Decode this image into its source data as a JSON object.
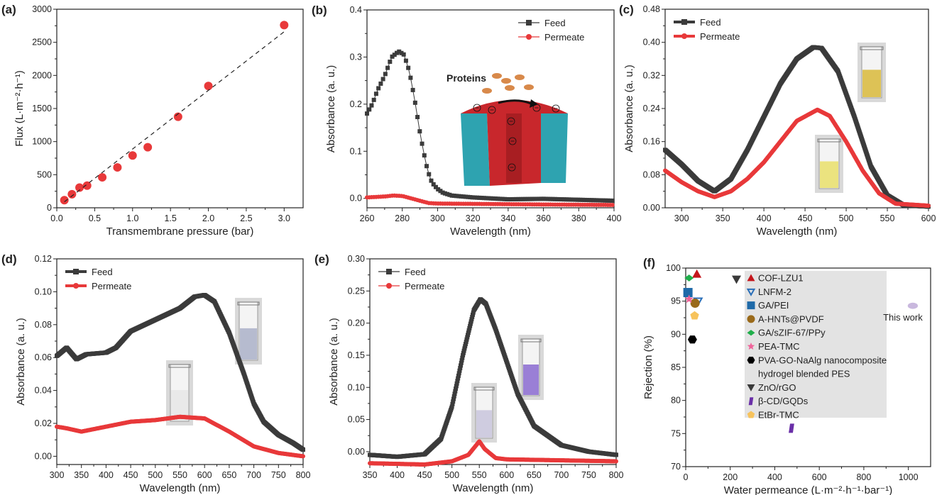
{
  "chart_data": [
    {
      "panel_label": "(a)",
      "type": "scatter",
      "xlabel": "Transmembrane pressure (bar)",
      "ylabel": "Flux (L·m⁻²·h⁻¹)",
      "xlim": [
        0,
        3.25
      ],
      "ylim": [
        0,
        3000
      ],
      "xticks": [
        "0.0",
        "0.5",
        "1.0",
        "1.5",
        "2.0",
        "2.5",
        "3.0"
      ],
      "xtick_values": [
        0,
        0.5,
        1,
        1.5,
        2,
        2.5,
        3
      ],
      "yticks": [
        "0",
        "500",
        "1000",
        "1500",
        "2000",
        "2500",
        "3000"
      ],
      "ytick_values": [
        0,
        500,
        1000,
        1500,
        2000,
        2500,
        3000
      ],
      "series": [
        {
          "name": "Flux",
          "marker": "circle",
          "color": "#e8393a",
          "line": false,
          "points": [
            [
              0.1,
              115
            ],
            [
              0.2,
              205
            ],
            [
              0.3,
              305
            ],
            [
              0.4,
              335
            ],
            [
              0.6,
              460
            ],
            [
              0.8,
              610
            ],
            [
              1.0,
              790
            ],
            [
              1.2,
              915
            ],
            [
              1.6,
              1375
            ],
            [
              2.0,
              1840
            ],
            [
              3.0,
              2760
            ]
          ]
        },
        {
          "name": "Linear fit",
          "marker": "none",
          "color": "#222222",
          "line": "dashed",
          "points": [
            [
              0.1,
              90
            ],
            [
              3.0,
              2660
            ]
          ]
        }
      ]
    },
    {
      "panel_label": "(b)",
      "type": "line",
      "xlabel": "Wavelength (nm)",
      "ylabel": "Absorbance (a. u.)",
      "xlim": [
        260,
        400
      ],
      "ylim": [
        -0.02,
        0.4
      ],
      "xticks": [
        "260",
        "280",
        "300",
        "320",
        "340",
        "360",
        "380",
        "400"
      ],
      "xtick_values": [
        260,
        280,
        300,
        320,
        340,
        360,
        380,
        400
      ],
      "yticks": [
        "0.0",
        "0.1",
        "0.2",
        "0.3",
        "0.4"
      ],
      "ytick_values": [
        0,
        0.1,
        0.2,
        0.3,
        0.4
      ],
      "legend_position": "top-right",
      "legend_style": "line-marker",
      "marker_step": 1.3,
      "series": [
        {
          "name": "Feed",
          "marker": "square",
          "color": "#3b3b3b",
          "points": [
            [
              260,
              0.18
            ],
            [
              263,
              0.2
            ],
            [
              266,
              0.23
            ],
            [
              270,
              0.26
            ],
            [
              274,
              0.3
            ],
            [
              278,
              0.312
            ],
            [
              281,
              0.305
            ],
            [
              284,
              0.27
            ],
            [
              287,
              0.21
            ],
            [
              290,
              0.14
            ],
            [
              292,
              0.1
            ],
            [
              294,
              0.065
            ],
            [
              296,
              0.04
            ],
            [
              298,
              0.028
            ],
            [
              300,
              0.02
            ],
            [
              303,
              0.012
            ],
            [
              308,
              0.006
            ],
            [
              320,
              0.002
            ],
            [
              340,
              -0.002
            ],
            [
              360,
              -0.001
            ],
            [
              380,
              -0.003
            ],
            [
              400,
              -0.005
            ]
          ]
        },
        {
          "name": "Permeate",
          "marker": "circle",
          "color": "#e8393a",
          "points": [
            [
              260,
              0.002
            ],
            [
              270,
              0.004
            ],
            [
              275,
              0.006
            ],
            [
              280,
              0.005
            ],
            [
              285,
              0.0
            ],
            [
              290,
              -0.005
            ],
            [
              295,
              -0.01
            ],
            [
              300,
              -0.011
            ],
            [
              330,
              -0.012
            ],
            [
              360,
              -0.013
            ],
            [
              400,
              -0.014
            ]
          ]
        }
      ],
      "inset": {
        "label": "Proteins",
        "colors": {
          "membrane": "#c8272c",
          "support": "#2ea3b0",
          "protein": "#d8894a"
        }
      }
    },
    {
      "panel_label": "(c)",
      "type": "line",
      "xlabel": "Wavelength (nm)",
      "ylabel": "Absorbance (a. u.)",
      "xlim": [
        280,
        600
      ],
      "ylim": [
        0,
        0.48
      ],
      "xticks": [
        "300",
        "350",
        "400",
        "450",
        "500",
        "550",
        "600"
      ],
      "xtick_values": [
        300,
        350,
        400,
        450,
        500,
        550,
        600
      ],
      "yticks": [
        "0.00",
        "0.08",
        "0.16",
        "0.24",
        "0.32",
        "0.40",
        "0.48"
      ],
      "ytick_values": [
        0,
        0.08,
        0.16,
        0.24,
        0.32,
        0.4,
        0.48
      ],
      "legend_position": "top-left",
      "legend_style": "marker",
      "marker_step": 0.5,
      "series": [
        {
          "name": "Feed",
          "marker": "square",
          "color": "#3b3b3b",
          "points": [
            [
              280,
              0.14
            ],
            [
              300,
              0.105
            ],
            [
              320,
              0.065
            ],
            [
              340,
              0.04
            ],
            [
              360,
              0.07
            ],
            [
              380,
              0.14
            ],
            [
              400,
              0.22
            ],
            [
              420,
              0.3
            ],
            [
              440,
              0.36
            ],
            [
              460,
              0.388
            ],
            [
              470,
              0.386
            ],
            [
              490,
              0.33
            ],
            [
              510,
              0.22
            ],
            [
              530,
              0.1
            ],
            [
              550,
              0.03
            ],
            [
              570,
              0.006
            ],
            [
              600,
              0.003
            ]
          ]
        },
        {
          "name": "Permeate",
          "marker": "circle",
          "color": "#e8393a",
          "points": [
            [
              280,
              0.09
            ],
            [
              300,
              0.062
            ],
            [
              320,
              0.04
            ],
            [
              340,
              0.026
            ],
            [
              360,
              0.04
            ],
            [
              380,
              0.07
            ],
            [
              400,
              0.11
            ],
            [
              420,
              0.16
            ],
            [
              440,
              0.21
            ],
            [
              465,
              0.237
            ],
            [
              480,
              0.222
            ],
            [
              500,
              0.16
            ],
            [
              520,
              0.09
            ],
            [
              540,
              0.035
            ],
            [
              560,
              0.01
            ],
            [
              600,
              0.005
            ]
          ]
        }
      ],
      "inset_colors": {
        "feed_vial": "#d8b93a",
        "permeate_vial": "#e9df6a"
      }
    },
    {
      "panel_label": "(d)",
      "type": "line",
      "xlabel": "Wavelength (nm)",
      "ylabel": "Absorbance (a. u.)",
      "xlim": [
        300,
        800
      ],
      "ylim": [
        -0.005,
        0.12
      ],
      "xticks": [
        "300",
        "350",
        "400",
        "450",
        "500",
        "550",
        "600",
        "650",
        "700",
        "750",
        "800"
      ],
      "xtick_values": [
        300,
        350,
        400,
        450,
        500,
        550,
        600,
        650,
        700,
        750,
        800
      ],
      "yticks": [
        "0.00",
        "0.02",
        "0.04",
        "0.06",
        "0.08",
        "0.10",
        "0.12"
      ],
      "ytick_values": [
        0,
        0.02,
        0.04,
        0.06,
        0.08,
        0.1,
        0.12
      ],
      "legend_position": "top-left",
      "legend_style": "marker",
      "marker_step": 1,
      "series": [
        {
          "name": "Feed",
          "marker": "square",
          "color": "#3b3b3b",
          "points": [
            [
              300,
              0.061
            ],
            [
              320,
              0.066
            ],
            [
              340,
              0.059
            ],
            [
              360,
              0.062
            ],
            [
              400,
              0.063
            ],
            [
              420,
              0.066
            ],
            [
              450,
              0.076
            ],
            [
              500,
              0.083
            ],
            [
              550,
              0.09
            ],
            [
              580,
              0.097
            ],
            [
              600,
              0.098
            ],
            [
              620,
              0.094
            ],
            [
              650,
              0.075
            ],
            [
              680,
              0.05
            ],
            [
              700,
              0.032
            ],
            [
              720,
              0.021
            ],
            [
              750,
              0.013
            ],
            [
              780,
              0.008
            ],
            [
              800,
              0.004
            ]
          ]
        },
        {
          "name": "Permeate",
          "marker": "circle",
          "color": "#e8393a",
          "points": [
            [
              300,
              0.018
            ],
            [
              320,
              0.017
            ],
            [
              350,
              0.015
            ],
            [
              400,
              0.018
            ],
            [
              450,
              0.021
            ],
            [
              500,
              0.022
            ],
            [
              550,
              0.024
            ],
            [
              600,
              0.023
            ],
            [
              650,
              0.015
            ],
            [
              700,
              0.006
            ],
            [
              750,
              0.002
            ],
            [
              800,
              0.0
            ]
          ]
        }
      ],
      "inset_colors": {
        "feed_vial": "#aab0c8",
        "permeate_vial": "#e6e6e6"
      }
    },
    {
      "panel_label": "(e)",
      "type": "line",
      "xlabel": "Wavelength (nm)",
      "ylabel": "Absorbance (a. u.)",
      "xlim": [
        350,
        800
      ],
      "ylim": [
        -0.02,
        0.3
      ],
      "xticks": [
        "350",
        "400",
        "450",
        "500",
        "550",
        "600",
        "650",
        "700",
        "750",
        "800"
      ],
      "xtick_values": [
        350,
        400,
        450,
        500,
        550,
        600,
        650,
        700,
        750,
        800
      ],
      "yticks": [
        "0.00",
        "0.05",
        "0.10",
        "0.15",
        "0.20",
        "0.25",
        "0.30"
      ],
      "ytick_values": [
        0,
        0.05,
        0.1,
        0.15,
        0.2,
        0.25,
        0.3
      ],
      "legend_position": "top-left",
      "legend_style": "line-marker",
      "marker_step": 1,
      "series": [
        {
          "name": "Feed",
          "marker": "square",
          "color": "#3b3b3b",
          "points": [
            [
              350,
              -0.005
            ],
            [
              400,
              -0.008
            ],
            [
              450,
              -0.004
            ],
            [
              480,
              0.02
            ],
            [
              500,
              0.07
            ],
            [
              520,
              0.15
            ],
            [
              540,
              0.22
            ],
            [
              552,
              0.237
            ],
            [
              562,
              0.23
            ],
            [
              580,
              0.19
            ],
            [
              600,
              0.14
            ],
            [
              620,
              0.09
            ],
            [
              650,
              0.04
            ],
            [
              700,
              0.01
            ],
            [
              750,
              0.0
            ],
            [
              800,
              -0.005
            ]
          ]
        },
        {
          "name": "Permeate",
          "marker": "circle",
          "color": "#e8393a",
          "points": [
            [
              350,
              -0.018
            ],
            [
              450,
              -0.02
            ],
            [
              500,
              -0.015
            ],
            [
              530,
              -0.005
            ],
            [
              550,
              0.016
            ],
            [
              560,
              0.004
            ],
            [
              580,
              -0.01
            ],
            [
              600,
              -0.012
            ],
            [
              800,
              -0.015
            ]
          ]
        }
      ],
      "inset_colors": {
        "feed_vial": "#8a6ad0",
        "permeate_vial": "#c8c4dc"
      }
    },
    {
      "panel_label": "(f)",
      "type": "scatter",
      "xlabel": "Water permeance (L·m⁻²·h⁻¹·bar⁻¹)",
      "ylabel": "Rejection (%)",
      "xlim": [
        0,
        1100
      ],
      "ylim": [
        70,
        100
      ],
      "xticks": [
        "0",
        "200",
        "400",
        "600",
        "800",
        "1000"
      ],
      "xtick_values": [
        0,
        200,
        400,
        600,
        800,
        1000
      ],
      "yticks": [
        "70",
        "75",
        "80",
        "85",
        "90",
        "95",
        "100"
      ],
      "ytick_values": [
        70,
        75,
        80,
        85,
        90,
        95,
        100
      ],
      "legend_position": "center",
      "legend_background": "#e3e3e3",
      "series": [
        {
          "name": "COF-LZU1",
          "marker": "triangle",
          "color": "#c4161c",
          "points": [
            [
              50,
              99.1
            ]
          ]
        },
        {
          "name": "LNFM-2",
          "marker": "triangle-down-open",
          "color": "#2a6fb8",
          "points": [
            [
              55,
              95.0
            ]
          ]
        },
        {
          "name": "GA/PEI",
          "marker": "square",
          "color": "#1f6aa8",
          "points": [
            [
              10,
              96.3
            ]
          ]
        },
        {
          "name": "A-HNTs@PVDF",
          "marker": "circle",
          "color": "#9a6a1a",
          "points": [
            [
              42,
              94.7
            ]
          ]
        },
        {
          "name": "GA/sZIF-67/PPy",
          "marker": "diamond",
          "color": "#1fae4a",
          "points": [
            [
              15,
              98.5
            ]
          ]
        },
        {
          "name": "PEA-TMC",
          "marker": "star",
          "color": "#f0649a",
          "points": [
            [
              15,
              95.3
            ]
          ]
        },
        {
          "name": "PVA-GO-NaAlg nanocomposite",
          "name2": "hydrogel blended PES",
          "marker": "hexagon",
          "color": "#000000",
          "points": [
            [
              30,
              89.2
            ]
          ]
        },
        {
          "name": "ZnO/rGO",
          "marker": "triangle-down",
          "color": "#3a3a3a",
          "points": [
            [
              228,
              98.3
            ]
          ]
        },
        {
          "name": "β-CD/GQDs",
          "marker": "parallelogram",
          "color": "#6a2fa8",
          "points": [
            [
              475,
              75.8
            ]
          ]
        },
        {
          "name": "EtBr-TMC",
          "marker": "pentagon",
          "color": "#f7c35c",
          "points": [
            [
              40,
              92.8
            ]
          ]
        }
      ],
      "annotation": {
        "text": "This work",
        "marker": "ellipse",
        "color": "#c9b8de",
        "point": [
          1020,
          94.3
        ]
      }
    }
  ]
}
